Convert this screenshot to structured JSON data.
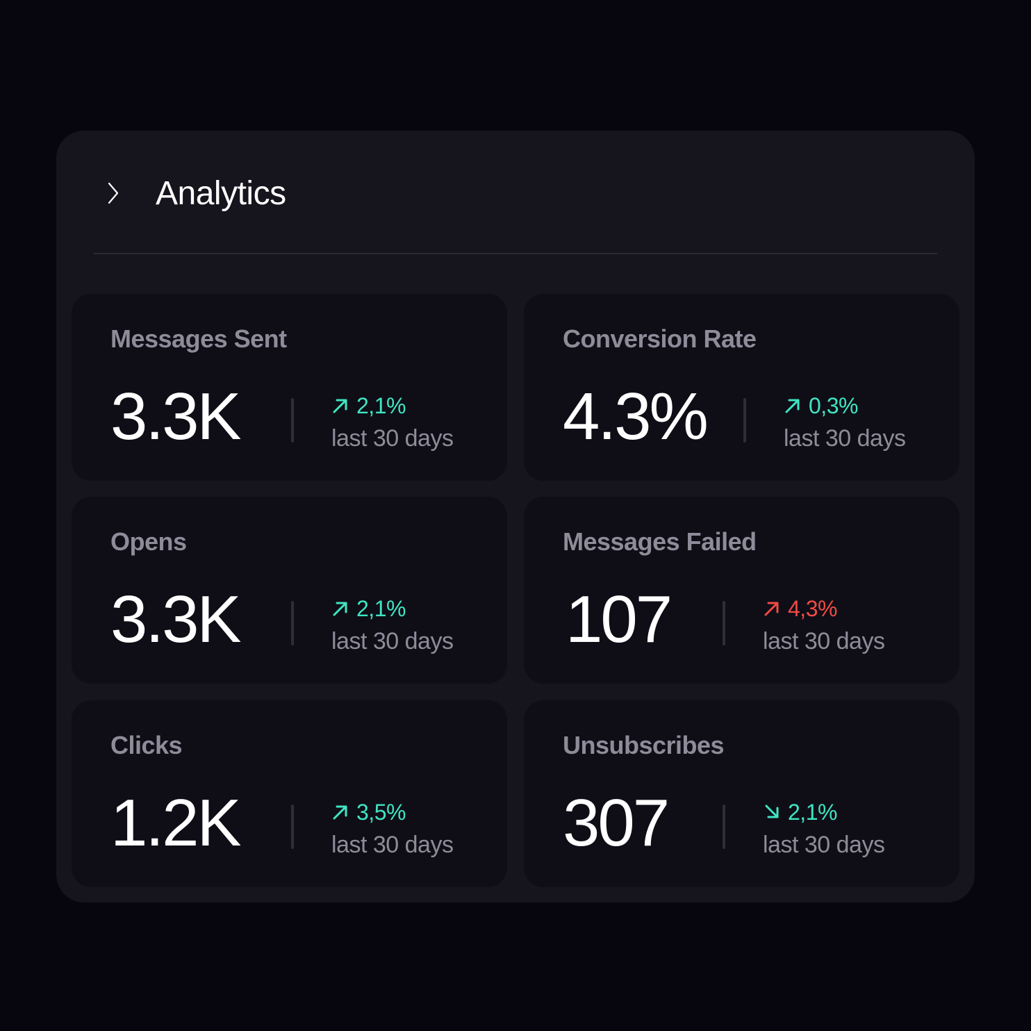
{
  "header": {
    "title": "Analytics",
    "toggle_icon": "chevron-right-icon"
  },
  "colors": {
    "page_background": "#07060e",
    "panel_background": "#16151e",
    "card_background": "#0f0e17",
    "positive": "#3fe6c3",
    "negative": "#f24a45",
    "label": "#8e8c99",
    "value": "#ffffff"
  },
  "cards": [
    {
      "label": "Messages Sent",
      "value": "3.3K",
      "delta": "2,1%",
      "direction": "up",
      "tone": "positive",
      "period": "last 30 days"
    },
    {
      "label": "Conversion Rate",
      "value": "4.3%",
      "delta": "0,3%",
      "direction": "up",
      "tone": "positive",
      "period": "last 30 days"
    },
    {
      "label": "Opens",
      "value": "3.3K",
      "delta": "2,1%",
      "direction": "up",
      "tone": "positive",
      "period": "last 30 days"
    },
    {
      "label": "Messages Failed",
      "value": "107",
      "delta": "4,3%",
      "direction": "up",
      "tone": "negative",
      "period": "last 30 days"
    },
    {
      "label": "Clicks",
      "value": "1.2K",
      "delta": "3,5%",
      "direction": "up",
      "tone": "positive",
      "period": "last 30 days"
    },
    {
      "label": "Unsubscribes",
      "value": "307",
      "delta": "2,1%",
      "direction": "down",
      "tone": "positive",
      "period": "last 30 days"
    }
  ]
}
